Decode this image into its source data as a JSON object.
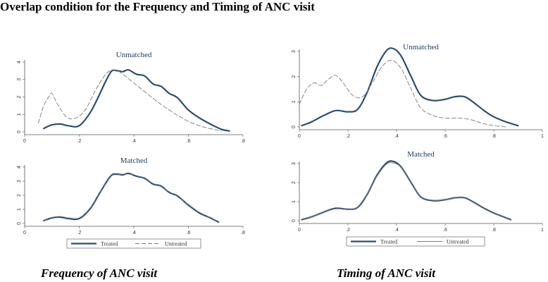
{
  "figure": {
    "title": "Overlap condition for  the Frequency and Timing of ANC visit",
    "caption_left": "Frequency of ANC visit",
    "caption_right": "Timing of ANC visit",
    "colors": {
      "treated": "#2b4d73",
      "untreated": "#7a7a7a",
      "title": "#1f3a5f"
    }
  },
  "chart_data": [
    {
      "id": "freq",
      "type": "line",
      "legend": [
        "Treated",
        "Untreated"
      ],
      "panels": [
        {
          "name": "unmatched",
          "title": "Unmatched",
          "xlim": [
            0,
            0.8
          ],
          "ylim": [
            0,
            4
          ],
          "xticks": [
            0,
            0.2,
            0.4,
            0.6,
            0.8
          ],
          "xtick_labels": [
            "0",
            ".2",
            ".4",
            ".6",
            ".8"
          ],
          "yticks": [
            0,
            1,
            2,
            3,
            4
          ],
          "ytick_labels": [
            "0",
            "1",
            "2",
            "3",
            "4"
          ],
          "series": [
            {
              "name": "Treated",
              "style": "solid",
              "x": [
                0.07,
                0.1,
                0.13,
                0.16,
                0.2,
                0.24,
                0.27,
                0.3,
                0.32,
                0.34,
                0.36,
                0.38,
                0.41,
                0.44,
                0.47,
                0.5,
                0.53,
                0.56,
                0.6,
                0.64,
                0.68,
                0.72,
                0.75
              ],
              "y": [
                0.2,
                0.4,
                0.45,
                0.35,
                0.35,
                1.1,
                2.0,
                3.0,
                3.5,
                3.5,
                3.45,
                3.55,
                3.3,
                3.2,
                2.75,
                2.6,
                2.2,
                1.95,
                1.25,
                0.8,
                0.45,
                0.15,
                0.05
              ]
            },
            {
              "name": "Untreated",
              "style": "dashed",
              "x": [
                0.05,
                0.07,
                0.09,
                0.1,
                0.12,
                0.15,
                0.18,
                0.22,
                0.26,
                0.3,
                0.33,
                0.36,
                0.4,
                0.44,
                0.48,
                0.52,
                0.56,
                0.6,
                0.64,
                0.68,
                0.72
              ],
              "y": [
                0.5,
                1.5,
                2.05,
                2.2,
                1.6,
                0.9,
                0.75,
                1.2,
                2.4,
                3.35,
                3.55,
                3.3,
                2.8,
                2.3,
                1.8,
                1.35,
                0.95,
                0.6,
                0.35,
                0.18,
                0.05
              ]
            }
          ]
        },
        {
          "name": "matched",
          "title": "Matched",
          "xlim": [
            0,
            0.8
          ],
          "ylim": [
            0,
            4
          ],
          "xticks": [
            0,
            0.2,
            0.4,
            0.6,
            0.8
          ],
          "xtick_labels": [
            "0",
            ".2",
            ".4",
            ".6",
            ".8"
          ],
          "yticks": [
            0,
            1,
            2,
            3,
            4
          ],
          "ytick_labels": [
            "0",
            "1",
            "2",
            "3",
            "4"
          ],
          "series": [
            {
              "name": "Treated",
              "style": "solid",
              "x": [
                0.07,
                0.1,
                0.13,
                0.16,
                0.2,
                0.24,
                0.27,
                0.3,
                0.32,
                0.34,
                0.36,
                0.38,
                0.41,
                0.44,
                0.47,
                0.5,
                0.53,
                0.56,
                0.6,
                0.64,
                0.68,
                0.71
              ],
              "y": [
                0.2,
                0.4,
                0.45,
                0.35,
                0.35,
                1.05,
                2.0,
                2.95,
                3.45,
                3.5,
                3.45,
                3.55,
                3.35,
                3.2,
                2.8,
                2.65,
                2.2,
                1.95,
                1.3,
                0.75,
                0.4,
                0.1
              ]
            },
            {
              "name": "Untreated",
              "style": "dashed",
              "x": [
                0.07,
                0.1,
                0.13,
                0.16,
                0.2,
                0.24,
                0.27,
                0.3,
                0.32,
                0.34,
                0.36,
                0.38,
                0.41,
                0.44,
                0.47,
                0.5,
                0.53,
                0.56,
                0.6,
                0.64,
                0.68,
                0.71
              ],
              "y": [
                0.2,
                0.42,
                0.5,
                0.4,
                0.4,
                1.1,
                2.05,
                2.9,
                3.4,
                3.45,
                3.5,
                3.5,
                3.4,
                3.15,
                2.85,
                2.6,
                2.25,
                1.9,
                1.35,
                0.8,
                0.42,
                0.12
              ]
            }
          ]
        }
      ]
    },
    {
      "id": "timing",
      "type": "line",
      "legend": [
        "Treated",
        "Untreated"
      ],
      "panels": [
        {
          "name": "unmatched",
          "title": "Unmatched",
          "xlim": [
            0,
            1
          ],
          "ylim": [
            0,
            3
          ],
          "xticks": [
            0,
            0.2,
            0.4,
            0.6,
            0.8,
            1
          ],
          "xtick_labels": [
            "0",
            ".2",
            ".4",
            ".6",
            ".8",
            "1"
          ],
          "yticks": [
            0,
            1,
            2,
            3
          ],
          "ytick_labels": [
            "0",
            "1",
            "2",
            "3"
          ],
          "series": [
            {
              "name": "Treated",
              "style": "solid",
              "x": [
                0.01,
                0.05,
                0.1,
                0.15,
                0.2,
                0.24,
                0.28,
                0.32,
                0.36,
                0.39,
                0.42,
                0.46,
                0.5,
                0.55,
                0.6,
                0.64,
                0.68,
                0.72,
                0.76,
                0.8,
                0.85,
                0.9
              ],
              "y": [
                0.05,
                0.2,
                0.45,
                0.65,
                0.6,
                0.7,
                1.4,
                2.4,
                3.05,
                3.1,
                2.8,
                2.0,
                1.25,
                1.05,
                1.1,
                1.2,
                1.2,
                0.95,
                0.65,
                0.4,
                0.2,
                0.05
              ]
            },
            {
              "name": "Untreated",
              "style": "dashed",
              "x": [
                0.0,
                0.03,
                0.06,
                0.09,
                0.12,
                0.15,
                0.18,
                0.22,
                0.26,
                0.3,
                0.34,
                0.38,
                0.42,
                0.46,
                0.5,
                0.55,
                0.6,
                0.65,
                0.7,
                0.75,
                0.8,
                0.85
              ],
              "y": [
                0.9,
                1.5,
                1.75,
                1.65,
                1.9,
                2.05,
                1.75,
                1.25,
                1.2,
                1.75,
                2.4,
                2.65,
                2.3,
                1.5,
                0.75,
                0.45,
                0.35,
                0.35,
                0.3,
                0.15,
                0.05,
                0.0
              ]
            }
          ]
        },
        {
          "name": "matched",
          "title": "Matched",
          "xlim": [
            0,
            1
          ],
          "ylim": [
            0,
            3
          ],
          "xticks": [
            0,
            0.2,
            0.4,
            0.6,
            0.8,
            1
          ],
          "xtick_labels": [
            "0",
            ".2",
            ".4",
            ".6",
            ".8",
            "1"
          ],
          "yticks": [
            0,
            1,
            2,
            3
          ],
          "ytick_labels": [
            "0",
            "1",
            "2",
            "3"
          ],
          "series": [
            {
              "name": "Treated",
              "style": "solid",
              "x": [
                0.01,
                0.05,
                0.1,
                0.15,
                0.2,
                0.24,
                0.28,
                0.32,
                0.36,
                0.39,
                0.42,
                0.46,
                0.5,
                0.55,
                0.6,
                0.64,
                0.68,
                0.72,
                0.76,
                0.8,
                0.84,
                0.87
              ],
              "y": [
                0.05,
                0.2,
                0.45,
                0.65,
                0.6,
                0.7,
                1.4,
                2.4,
                3.05,
                3.1,
                2.8,
                2.0,
                1.25,
                1.05,
                1.1,
                1.2,
                1.2,
                0.95,
                0.65,
                0.4,
                0.2,
                0.05
              ]
            },
            {
              "name": "Untreated",
              "style": "solid-thin",
              "x": [
                0.01,
                0.05,
                0.1,
                0.15,
                0.2,
                0.24,
                0.28,
                0.32,
                0.36,
                0.39,
                0.42,
                0.46,
                0.5,
                0.55,
                0.6,
                0.64,
                0.68,
                0.72,
                0.76,
                0.8,
                0.84,
                0.87
              ],
              "y": [
                0.05,
                0.2,
                0.45,
                0.62,
                0.6,
                0.72,
                1.42,
                2.35,
                2.98,
                3.02,
                2.78,
                2.0,
                1.27,
                1.07,
                1.1,
                1.18,
                1.18,
                0.93,
                0.63,
                0.38,
                0.18,
                0.04
              ]
            }
          ]
        }
      ]
    }
  ]
}
